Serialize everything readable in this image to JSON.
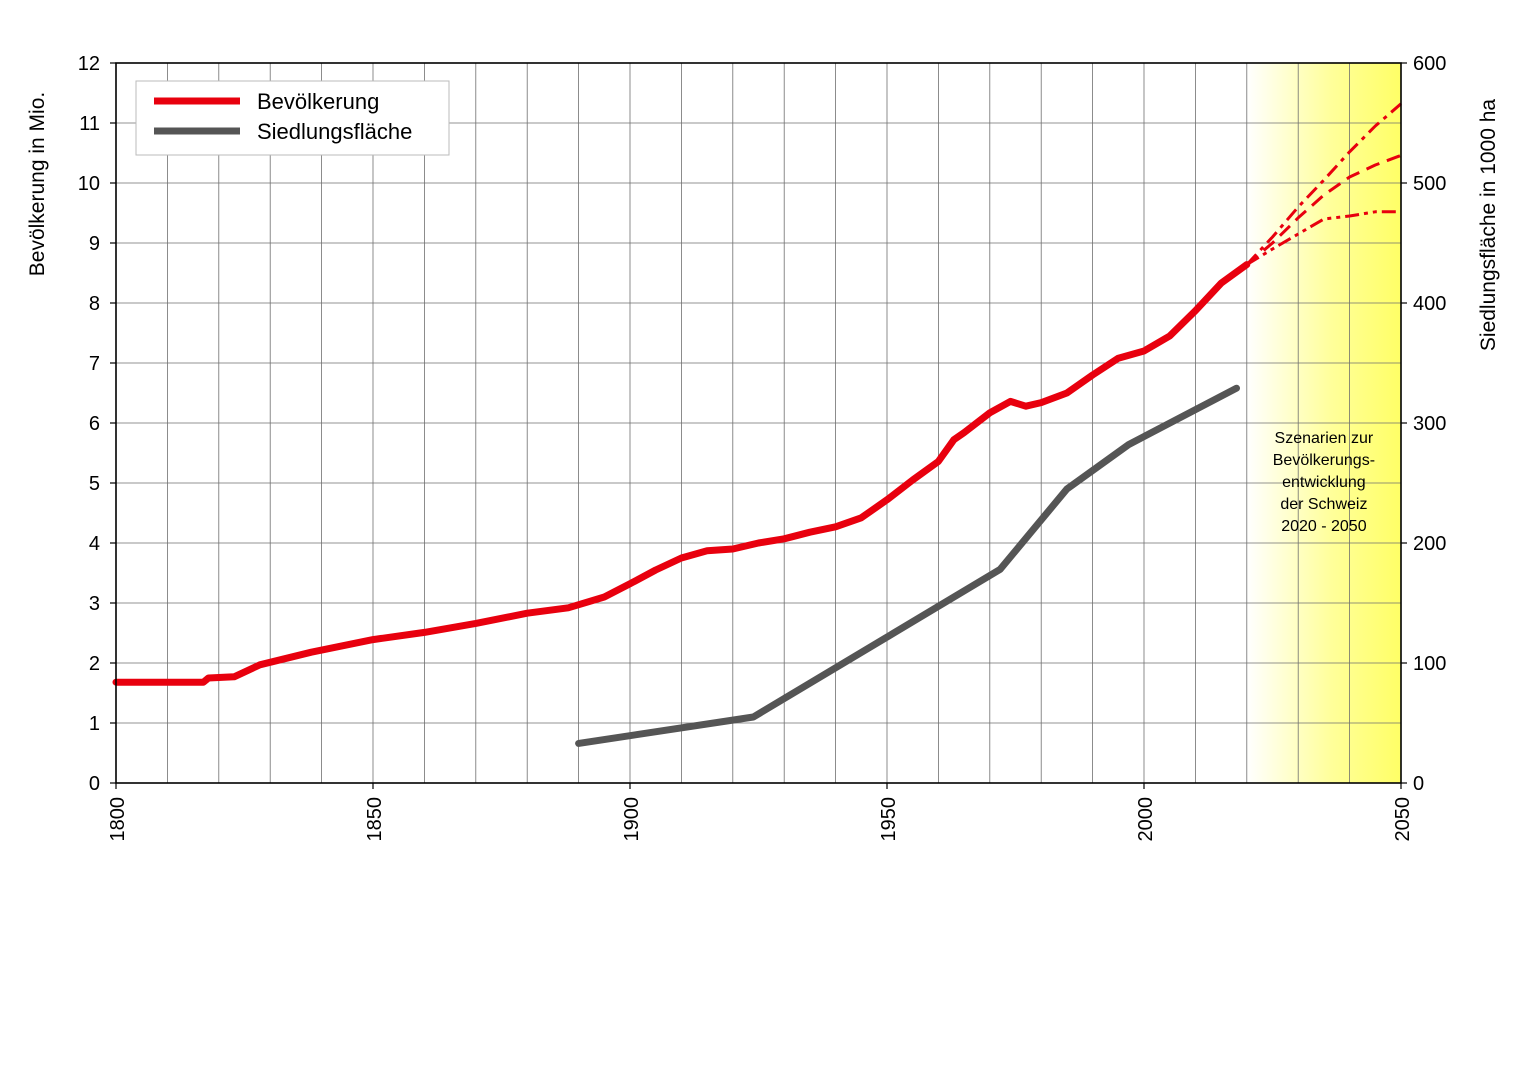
{
  "chart_data": {
    "type": "line",
    "xlim": [
      1800,
      2050
    ],
    "x_ticks": [
      "1800",
      "1850",
      "1900",
      "1950",
      "2000",
      "2050"
    ],
    "x_gridlines_every": 10,
    "y_left": {
      "label": "Bevölkerung in Mio.",
      "lim": [
        0,
        12
      ],
      "ticks": [
        "0",
        "1",
        "2",
        "3",
        "4",
        "5",
        "6",
        "7",
        "8",
        "9",
        "10",
        "11",
        "12"
      ]
    },
    "y_right": {
      "label": "Siedlungsfläche in 1000 ha",
      "lim": [
        0,
        600
      ],
      "ticks": [
        "0",
        "100",
        "200",
        "300",
        "400",
        "500",
        "600"
      ]
    },
    "grid": true,
    "legend_position": "top-left",
    "scenario_region": {
      "x": [
        2020,
        2050
      ],
      "color": "#ffff66"
    },
    "scenario_note": [
      "Szenarien zur",
      "Bevölkerungs-",
      "entwicklung",
      "der Schweiz",
      "2020 - 2050"
    ],
    "series": [
      {
        "name": "Bevölkerung",
        "axis": "left",
        "color": "#e8000e",
        "x": [
          1800,
          1817,
          1818,
          1823,
          1828,
          1838,
          1850,
          1860,
          1870,
          1880,
          1888,
          1895,
          1900,
          1905,
          1910,
          1915,
          1920,
          1925,
          1930,
          1935,
          1940,
          1945,
          1950,
          1955,
          1960,
          1963,
          1965,
          1970,
          1974,
          1977,
          1980,
          1985,
          1990,
          1995,
          2000,
          2005,
          2010,
          2015,
          2020
        ],
        "values": [
          1.68,
          1.68,
          1.75,
          1.77,
          1.97,
          2.18,
          2.39,
          2.51,
          2.66,
          2.83,
          2.92,
          3.1,
          3.32,
          3.55,
          3.75,
          3.87,
          3.9,
          4.0,
          4.07,
          4.18,
          4.27,
          4.42,
          4.72,
          5.05,
          5.36,
          5.72,
          5.84,
          6.17,
          6.36,
          6.28,
          6.34,
          6.5,
          6.8,
          7.08,
          7.2,
          7.45,
          7.87,
          8.33,
          8.64
        ]
      },
      {
        "name": "Siedlungsfläche",
        "axis": "right",
        "color": "#555555",
        "x": [
          1890,
          1924,
          1972,
          1985,
          1997,
          2018
        ],
        "values": [
          33,
          55,
          178,
          245,
          282,
          329
        ]
      },
      {
        "axis": "left",
        "color": "#e8000e",
        "dash": "14,6,4,6",
        "x": [
          2020,
          2025,
          2030,
          2035,
          2040,
          2045,
          2050
        ],
        "values": [
          8.64,
          9.1,
          9.6,
          10.05,
          10.52,
          10.95,
          11.32
        ]
      },
      {
        "axis": "left",
        "color": "#e8000e",
        "dash": "14,8",
        "x": [
          2020,
          2025,
          2030,
          2035,
          2040,
          2045,
          2050
        ],
        "values": [
          8.64,
          9.0,
          9.42,
          9.8,
          10.1,
          10.3,
          10.46
        ]
      },
      {
        "axis": "left",
        "color": "#e8000e",
        "dash": "14,5,4,5,4,5",
        "x": [
          2020,
          2025,
          2030,
          2035,
          2040,
          2045,
          2050
        ],
        "values": [
          8.64,
          8.9,
          9.15,
          9.4,
          9.45,
          9.52,
          9.52
        ]
      }
    ]
  }
}
